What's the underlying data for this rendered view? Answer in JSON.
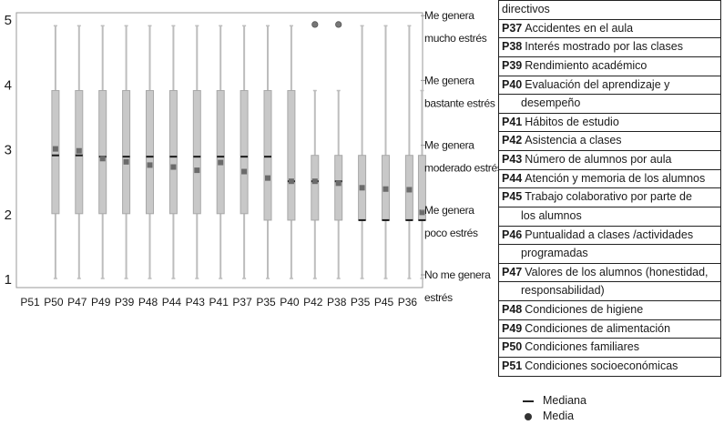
{
  "chart_data": {
    "type": "boxplot",
    "categories": [
      "P51",
      "P50",
      "P47",
      "P49",
      "P39",
      "P48",
      "P44",
      "P43",
      "P41",
      "P37",
      "P35",
      "P40",
      "P42",
      "P38",
      "P35",
      "P45",
      "P36"
    ],
    "yticks": [
      1,
      2,
      3,
      4,
      5
    ],
    "ylim": [
      1,
      5
    ],
    "grid": false,
    "series": [
      {
        "category": "P51",
        "min": null,
        "q1": null,
        "median": null,
        "q3": null,
        "max": null,
        "mean": null,
        "outliers": []
      },
      {
        "category": "P50",
        "min": 1,
        "q1": 2,
        "median": 2.9,
        "q3": 3.9,
        "max": 4.9,
        "mean": 3.0,
        "outliers": []
      },
      {
        "category": "P47",
        "min": 1,
        "q1": 2,
        "median": 2.9,
        "q3": 3.9,
        "max": 4.9,
        "mean": 2.97,
        "outliers": []
      },
      {
        "category": "P49",
        "min": 1,
        "q1": 2,
        "median": 2.88,
        "q3": 3.9,
        "max": 4.9,
        "mean": 2.85,
        "outliers": []
      },
      {
        "category": "P39",
        "min": 1,
        "q1": 2,
        "median": 2.88,
        "q3": 3.9,
        "max": 4.9,
        "mean": 2.8,
        "outliers": []
      },
      {
        "category": "P48",
        "min": 1,
        "q1": 2,
        "median": 2.88,
        "q3": 3.9,
        "max": 4.9,
        "mean": 2.75,
        "outliers": []
      },
      {
        "category": "P44",
        "min": 1,
        "q1": 2,
        "median": 2.88,
        "q3": 3.9,
        "max": 4.9,
        "mean": 2.72,
        "outliers": []
      },
      {
        "category": "P43",
        "min": 1,
        "q1": 2,
        "median": 2.88,
        "q3": 3.9,
        "max": 4.9,
        "mean": 2.67,
        "outliers": []
      },
      {
        "category": "P41",
        "min": 1,
        "q1": 2,
        "median": 2.88,
        "q3": 3.9,
        "max": 4.9,
        "mean": 2.79,
        "outliers": []
      },
      {
        "category": "P37",
        "min": 1,
        "q1": 2,
        "median": 2.88,
        "q3": 3.9,
        "max": 4.9,
        "mean": 2.65,
        "outliers": []
      },
      {
        "category": "P35",
        "min": 1,
        "q1": 1.9,
        "median": 2.88,
        "q3": 3.9,
        "max": 4.9,
        "mean": 2.55,
        "outliers": []
      },
      {
        "category": "P40",
        "min": 1,
        "q1": 1.9,
        "median": 2.5,
        "q3": 3.9,
        "max": 4.9,
        "mean": 2.5,
        "outliers": []
      },
      {
        "category": "P42",
        "min": 1,
        "q1": 1.9,
        "median": 2.5,
        "q3": 2.9,
        "max": 3.9,
        "mean": 2.5,
        "outliers": [
          4.92
        ]
      },
      {
        "category": "P38",
        "min": 1,
        "q1": 1.9,
        "median": 2.5,
        "q3": 2.9,
        "max": 3.9,
        "mean": 2.47,
        "outliers": [
          4.92
        ]
      },
      {
        "category": "P35",
        "min": 1,
        "q1": 1.9,
        "median": 1.9,
        "q3": 2.9,
        "max": 4.9,
        "mean": 2.4,
        "outliers": []
      },
      {
        "category": "P45",
        "min": 1,
        "q1": 1.9,
        "median": 1.9,
        "q3": 2.9,
        "max": 4.9,
        "mean": 2.38,
        "outliers": []
      },
      {
        "category": "P36",
        "min": 1,
        "q1": 1.9,
        "median": 1.9,
        "q3": 2.9,
        "max": 4.9,
        "mean": 2.37,
        "outliers": []
      }
    ],
    "extra_box": {
      "min": 1,
      "q1": 1.9,
      "median": 1.9,
      "q3": 2.9,
      "max": 3.9,
      "mean": 2.02
    },
    "level_labels": [
      {
        "value": 5,
        "lines": [
          "Me genera",
          "mucho estrés"
        ]
      },
      {
        "value": 4,
        "lines": [
          "Me genera",
          "bastante estrés"
        ]
      },
      {
        "value": 3,
        "lines": [
          "Me genera",
          "moderado estrés"
        ]
      },
      {
        "value": 2,
        "lines": [
          "Me genera",
          "poco estrés"
        ]
      },
      {
        "value": 1,
        "lines": [
          "No me genera",
          "estrés"
        ]
      }
    ]
  },
  "legend_table": [
    {
      "code": "",
      "lines": [
        "directivos"
      ],
      "justify": false
    },
    {
      "code": "P37",
      "lines": [
        "Accidentes en el aula"
      ],
      "justify": false
    },
    {
      "code": "P38",
      "lines": [
        "Interés mostrado por las clases"
      ],
      "justify": false
    },
    {
      "code": "P39",
      "lines": [
        "Rendimiento académico"
      ],
      "justify": false
    },
    {
      "code": "P40",
      "lines": [
        "Evaluación del aprendizaje y",
        "desempeño"
      ],
      "justify": true
    },
    {
      "code": "P41",
      "lines": [
        "Hábitos de estudio"
      ],
      "justify": false
    },
    {
      "code": "P42",
      "lines": [
        "Asistencia a clases"
      ],
      "justify": false
    },
    {
      "code": "P43",
      "lines": [
        "Número de alumnos por aula"
      ],
      "justify": false
    },
    {
      "code": "P44",
      "lines": [
        "Atención y memoria de los alumnos"
      ],
      "justify": false
    },
    {
      "code": "P45",
      "lines": [
        "Trabajo colaborativo por parte de",
        "los alumnos"
      ],
      "justify": true
    },
    {
      "code": "P46",
      "lines": [
        "Puntualidad a clases /actividades",
        "programadas"
      ],
      "justify": true
    },
    {
      "code": "P47",
      "lines": [
        "Valores de los alumnos (honestidad,",
        "responsabilidad)"
      ],
      "justify": true
    },
    {
      "code": "P48",
      "lines": [
        "Condiciones de higiene"
      ],
      "justify": false
    },
    {
      "code": "P49",
      "lines": [
        "Condiciones de alimentación"
      ],
      "justify": false
    },
    {
      "code": "P50",
      "lines": [
        "Condiciones familiares"
      ],
      "justify": false
    },
    {
      "code": "P51",
      "lines": [
        "Condiciones socioeconómicas"
      ],
      "justify": false
    }
  ],
  "symbol_key": {
    "median_label": "Mediana",
    "mean_label": "Media",
    "box_color": "#c8c8c8",
    "box_border": "#a8a8a8",
    "median_color": "#1a1a1a",
    "mean_color": "#6b6b6b",
    "whisker_color": "#bdbdbd"
  }
}
